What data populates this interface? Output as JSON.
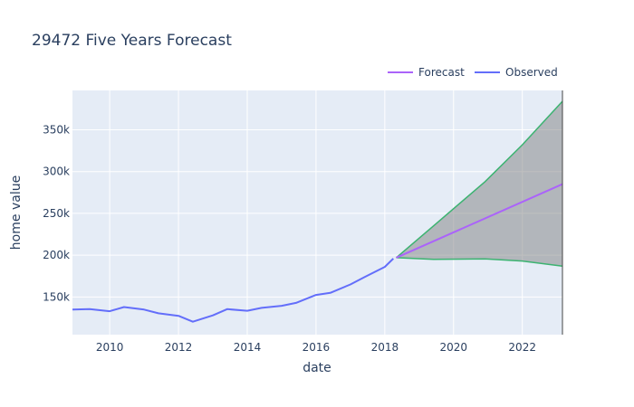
{
  "chart_data": {
    "type": "line",
    "title": "29472 Five Years Forecast",
    "xlabel": "date",
    "ylabel": "home value",
    "xlim": [
      "2008-12-01",
      "2023-03-01"
    ],
    "ylim": [
      105000,
      397000
    ],
    "grid": true,
    "legend_position": "top-right",
    "x_ticks": [
      2010,
      2012,
      2014,
      2016,
      2018,
      2020,
      2022
    ],
    "x_tick_labels": [
      "2010",
      "2012",
      "2014",
      "2016",
      "2018",
      "2020",
      "2022"
    ],
    "y_ticks": [
      150000,
      200000,
      250000,
      300000,
      350000
    ],
    "y_tick_labels": [
      "150k",
      "200k",
      "250k",
      "300k",
      "350k"
    ],
    "series": [
      {
        "name": "Forecast",
        "color": "#ab63fa",
        "x": [
          "2018-05-01",
          "2023-03-01"
        ],
        "y": [
          197000,
          285000
        ]
      },
      {
        "name": "Observed",
        "color": "#636efa",
        "x": [
          "2008-12-01",
          "2009-06-01",
          "2010-01-01",
          "2010-06-01",
          "2011-01-01",
          "2011-06-01",
          "2012-01-01",
          "2012-06-01",
          "2013-01-01",
          "2013-06-01",
          "2014-01-01",
          "2014-06-01",
          "2015-01-01",
          "2015-06-01",
          "2016-01-01",
          "2016-06-01",
          "2017-01-01",
          "2017-06-01",
          "2018-01-01",
          "2018-04-01"
        ],
        "y": [
          135000,
          135500,
          133000,
          138000,
          135000,
          130500,
          127500,
          120500,
          128000,
          135500,
          133500,
          137000,
          139500,
          143000,
          152500,
          155000,
          165000,
          174000,
          186000,
          196000
        ]
      }
    ],
    "confidence_band": {
      "color": "#3cb371",
      "fill": "#808080",
      "x": [
        "2018-05-01",
        "2019-06-01",
        "2020-12-01",
        "2022-01-01",
        "2023-03-01"
      ],
      "upper": [
        197000,
        235000,
        288000,
        332000,
        384000
      ],
      "lower": [
        197000,
        195000,
        195500,
        193000,
        187000
      ]
    }
  }
}
